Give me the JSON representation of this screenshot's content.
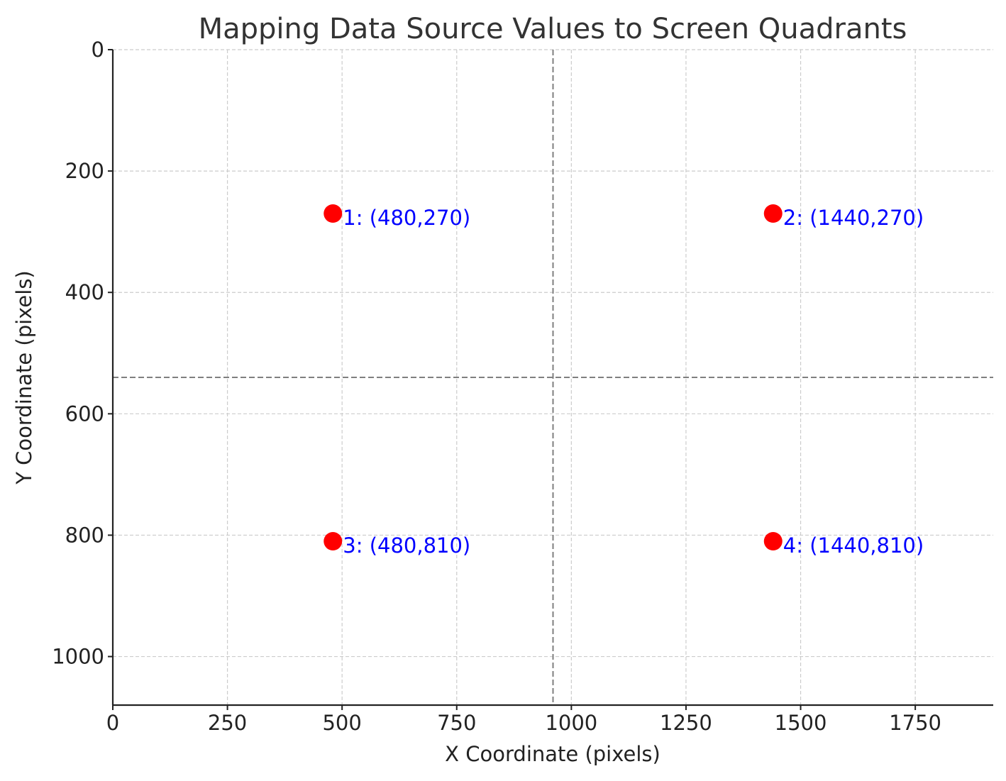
{
  "chart_data": {
    "type": "scatter",
    "title": "Mapping Data Source Values to Screen Quadrants",
    "xlabel": "X Coordinate (pixels)",
    "ylabel": "Y Coordinate (pixels)",
    "xlim": [
      0,
      1920
    ],
    "ylim": [
      1080,
      0
    ],
    "y_inverted": true,
    "grid": true,
    "xticks": [
      0,
      250,
      500,
      750,
      1000,
      1250,
      1500,
      1750
    ],
    "yticks": [
      0,
      200,
      400,
      600,
      800,
      1000
    ],
    "quadrant_dividers": {
      "x": 960,
      "y": 540
    },
    "point_color": "#ff0000",
    "label_color": "#0000ff",
    "points": [
      {
        "x": 480,
        "y": 270,
        "label": "1: (480,270)"
      },
      {
        "x": 1440,
        "y": 270,
        "label": "2: (1440,270)"
      },
      {
        "x": 480,
        "y": 810,
        "label": "3: (480,810)"
      },
      {
        "x": 1440,
        "y": 810,
        "label": "4: (1440,810)"
      }
    ]
  }
}
